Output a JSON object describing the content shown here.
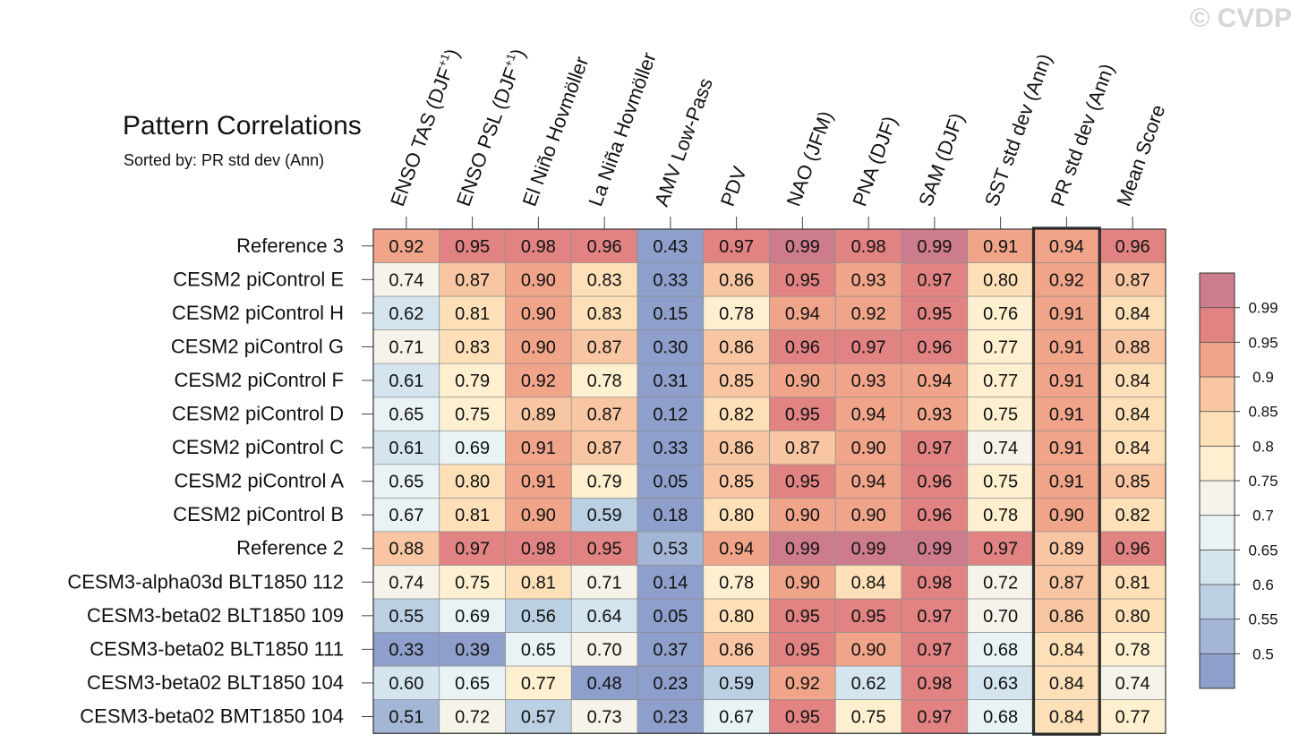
{
  "watermark": "© CVDP",
  "title": "Pattern Correlations",
  "subtitle": "Sorted by: PR std dev (Ann)",
  "chart_data": {
    "type": "heatmap",
    "columns": [
      "ENSO TAS (DJF+1)",
      "ENSO PSL (DJF+1)",
      "El Niño Hovmöller",
      "La Niña Hovmöller",
      "AMV Low-Pass",
      "PDV",
      "NAO (JFM)",
      "PNA (DJF)",
      "SAM (DJF)",
      "SST std dev (Ann)",
      "PR std dev (Ann)",
      "Mean Score"
    ],
    "column_labels": [
      {
        "main": "ENSO TAS (DJF",
        "sup": "+1",
        "end": ")"
      },
      {
        "main": "ENSO PSL (DJF",
        "sup": "+1",
        "end": ")"
      },
      {
        "main": "El Niño Hovmöller",
        "sup": "",
        "end": ""
      },
      {
        "main": "La Niña Hovmöller",
        "sup": "",
        "end": ""
      },
      {
        "main": "AMV Low-Pass",
        "sup": "",
        "end": ""
      },
      {
        "main": "PDV",
        "sup": "",
        "end": ""
      },
      {
        "main": "NAO (JFM)",
        "sup": "",
        "end": ""
      },
      {
        "main": "PNA (DJF)",
        "sup": "",
        "end": ""
      },
      {
        "main": "SAM (DJF)",
        "sup": "",
        "end": ""
      },
      {
        "main": "SST std dev (Ann)",
        "sup": "",
        "end": ""
      },
      {
        "main": "PR std dev (Ann)",
        "sup": "",
        "end": ""
      },
      {
        "main": "Mean Score",
        "sup": "",
        "end": ""
      }
    ],
    "rows": [
      "Reference 3",
      "CESM2 piControl E",
      "CESM2 piControl H",
      "CESM2 piControl G",
      "CESM2 piControl F",
      "CESM2 piControl D",
      "CESM2 piControl C",
      "CESM2 piControl A",
      "CESM2 piControl B",
      "Reference 2",
      "CESM3-alpha03d BLT1850 112",
      "CESM3-beta02 BLT1850 109",
      "CESM3-beta02 BLT1850 111",
      "CESM3-beta02 BLT1850 104",
      "CESM3-beta02 BMT1850 104"
    ],
    "values": [
      [
        "0.92",
        "0.95",
        "0.98",
        "0.96",
        "0.43",
        "0.97",
        "0.99",
        "0.98",
        "0.99",
        "0.91",
        "0.94",
        "0.96"
      ],
      [
        "0.74",
        "0.87",
        "0.90",
        "0.83",
        "0.33",
        "0.86",
        "0.95",
        "0.93",
        "0.97",
        "0.80",
        "0.92",
        "0.87"
      ],
      [
        "0.62",
        "0.81",
        "0.90",
        "0.83",
        "0.15",
        "0.78",
        "0.94",
        "0.92",
        "0.95",
        "0.76",
        "0.91",
        "0.84"
      ],
      [
        "0.71",
        "0.83",
        "0.90",
        "0.87",
        "0.30",
        "0.86",
        "0.96",
        "0.97",
        "0.96",
        "0.77",
        "0.91",
        "0.88"
      ],
      [
        "0.61",
        "0.79",
        "0.92",
        "0.78",
        "0.31",
        "0.85",
        "0.90",
        "0.93",
        "0.94",
        "0.77",
        "0.91",
        "0.84"
      ],
      [
        "0.65",
        "0.75",
        "0.89",
        "0.87",
        "0.12",
        "0.82",
        "0.95",
        "0.94",
        "0.93",
        "0.75",
        "0.91",
        "0.84"
      ],
      [
        "0.61",
        "0.69",
        "0.91",
        "0.87",
        "0.33",
        "0.86",
        "0.87",
        "0.90",
        "0.97",
        "0.74",
        "0.91",
        "0.84"
      ],
      [
        "0.65",
        "0.80",
        "0.91",
        "0.79",
        "0.05",
        "0.85",
        "0.95",
        "0.94",
        "0.96",
        "0.75",
        "0.91",
        "0.85"
      ],
      [
        "0.67",
        "0.81",
        "0.90",
        "0.59",
        "0.18",
        "0.80",
        "0.90",
        "0.90",
        "0.96",
        "0.78",
        "0.90",
        "0.82"
      ],
      [
        "0.88",
        "0.97",
        "0.98",
        "0.95",
        "0.53",
        "0.94",
        "0.99",
        "0.99",
        "0.99",
        "0.97",
        "0.89",
        "0.96"
      ],
      [
        "0.74",
        "0.75",
        "0.81",
        "0.71",
        "0.14",
        "0.78",
        "0.90",
        "0.84",
        "0.98",
        "0.72",
        "0.87",
        "0.81"
      ],
      [
        "0.55",
        "0.69",
        "0.56",
        "0.64",
        "0.05",
        "0.80",
        "0.95",
        "0.95",
        "0.97",
        "0.70",
        "0.86",
        "0.80"
      ],
      [
        "0.33",
        "0.39",
        "0.65",
        "0.70",
        "0.37",
        "0.86",
        "0.95",
        "0.90",
        "0.97",
        "0.68",
        "0.84",
        "0.78"
      ],
      [
        "0.60",
        "0.65",
        "0.77",
        "0.48",
        "0.23",
        "0.59",
        "0.92",
        "0.62",
        "0.98",
        "0.63",
        "0.84",
        "0.74"
      ],
      [
        "0.51",
        "0.72",
        "0.57",
        "0.73",
        "0.23",
        "0.67",
        "0.95",
        "0.75",
        "0.97",
        "0.68",
        "0.84",
        "0.77"
      ]
    ],
    "highlighted_column": "PR std dev (Ann)",
    "colorbar": {
      "levels": [
        "0.5",
        "0.55",
        "0.6",
        "0.65",
        "0.7",
        "0.75",
        "0.8",
        "0.85",
        "0.9",
        "0.95",
        "0.99"
      ],
      "colors": [
        "#8e9fcb",
        "#a3b6d6",
        "#bcd0e4",
        "#d5e5ef",
        "#e9f2f4",
        "#f6f4ea",
        "#fdefcf",
        "#fde0b8",
        "#f8c6a2",
        "#f0a58a",
        "#e08382",
        "#cd7c8e"
      ]
    }
  }
}
